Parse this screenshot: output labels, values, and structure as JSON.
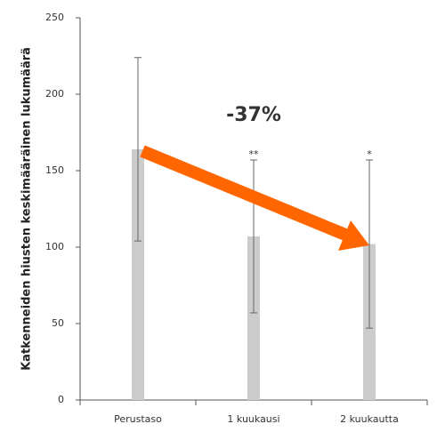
{
  "chart_data": {
    "type": "bar",
    "y_label": "Katkenneiden hiusten keskimääräinen lukumäärä",
    "categories": [
      "Perustaso",
      "1 kuukausi",
      "2 kuukautta"
    ],
    "values": [
      164,
      107,
      102
    ],
    "errors": [
      60,
      50,
      55
    ],
    "significance": [
      null,
      "**",
      "*"
    ],
    "annotation": "-37%",
    "color": "#cccccc",
    "annotation_color": "#ff6600",
    "ylim": [
      0,
      250
    ],
    "yticks": [
      0,
      50,
      100,
      150,
      200,
      250
    ]
  }
}
